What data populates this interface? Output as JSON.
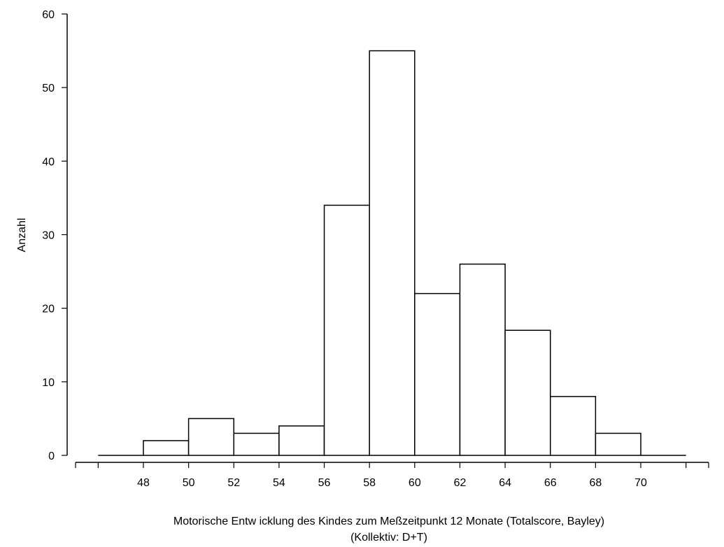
{
  "chart_data": {
    "type": "bar",
    "bins": [
      {
        "from": 46,
        "to": 48,
        "value": 0
      },
      {
        "from": 48,
        "to": 50,
        "value": 2
      },
      {
        "from": 50,
        "to": 52,
        "value": 5
      },
      {
        "from": 52,
        "to": 54,
        "value": 3
      },
      {
        "from": 54,
        "to": 56,
        "value": 4
      },
      {
        "from": 56,
        "to": 58,
        "value": 34
      },
      {
        "from": 58,
        "to": 60,
        "value": 55
      },
      {
        "from": 60,
        "to": 62,
        "value": 22
      },
      {
        "from": 62,
        "to": 64,
        "value": 26
      },
      {
        "from": 64,
        "to": 66,
        "value": 17
      },
      {
        "from": 66,
        "to": 68,
        "value": 8
      },
      {
        "from": 68,
        "to": 70,
        "value": 3
      },
      {
        "from": 70,
        "to": 72,
        "value": 0
      }
    ],
    "x_tick_labels": [
      "48",
      "50",
      "52",
      "54",
      "56",
      "58",
      "60",
      "62",
      "64",
      "66",
      "68",
      "70"
    ],
    "y_tick_labels": [
      "0",
      "10",
      "20",
      "30",
      "40",
      "50",
      "60"
    ],
    "xlabel": "Motorische Entw icklung des Kindes zum Meßzeitpunkt 12 Monate (Totalscore, Bayley)",
    "xlabel_line2": "(Kollektiv: D+T)",
    "ylabel": "Anzahl",
    "xlim": [
      45,
      73
    ],
    "ylim": [
      0,
      60
    ],
    "grid": false,
    "colors": {
      "bar_fill": "#ffffff",
      "bar_stroke": "#000000"
    }
  }
}
